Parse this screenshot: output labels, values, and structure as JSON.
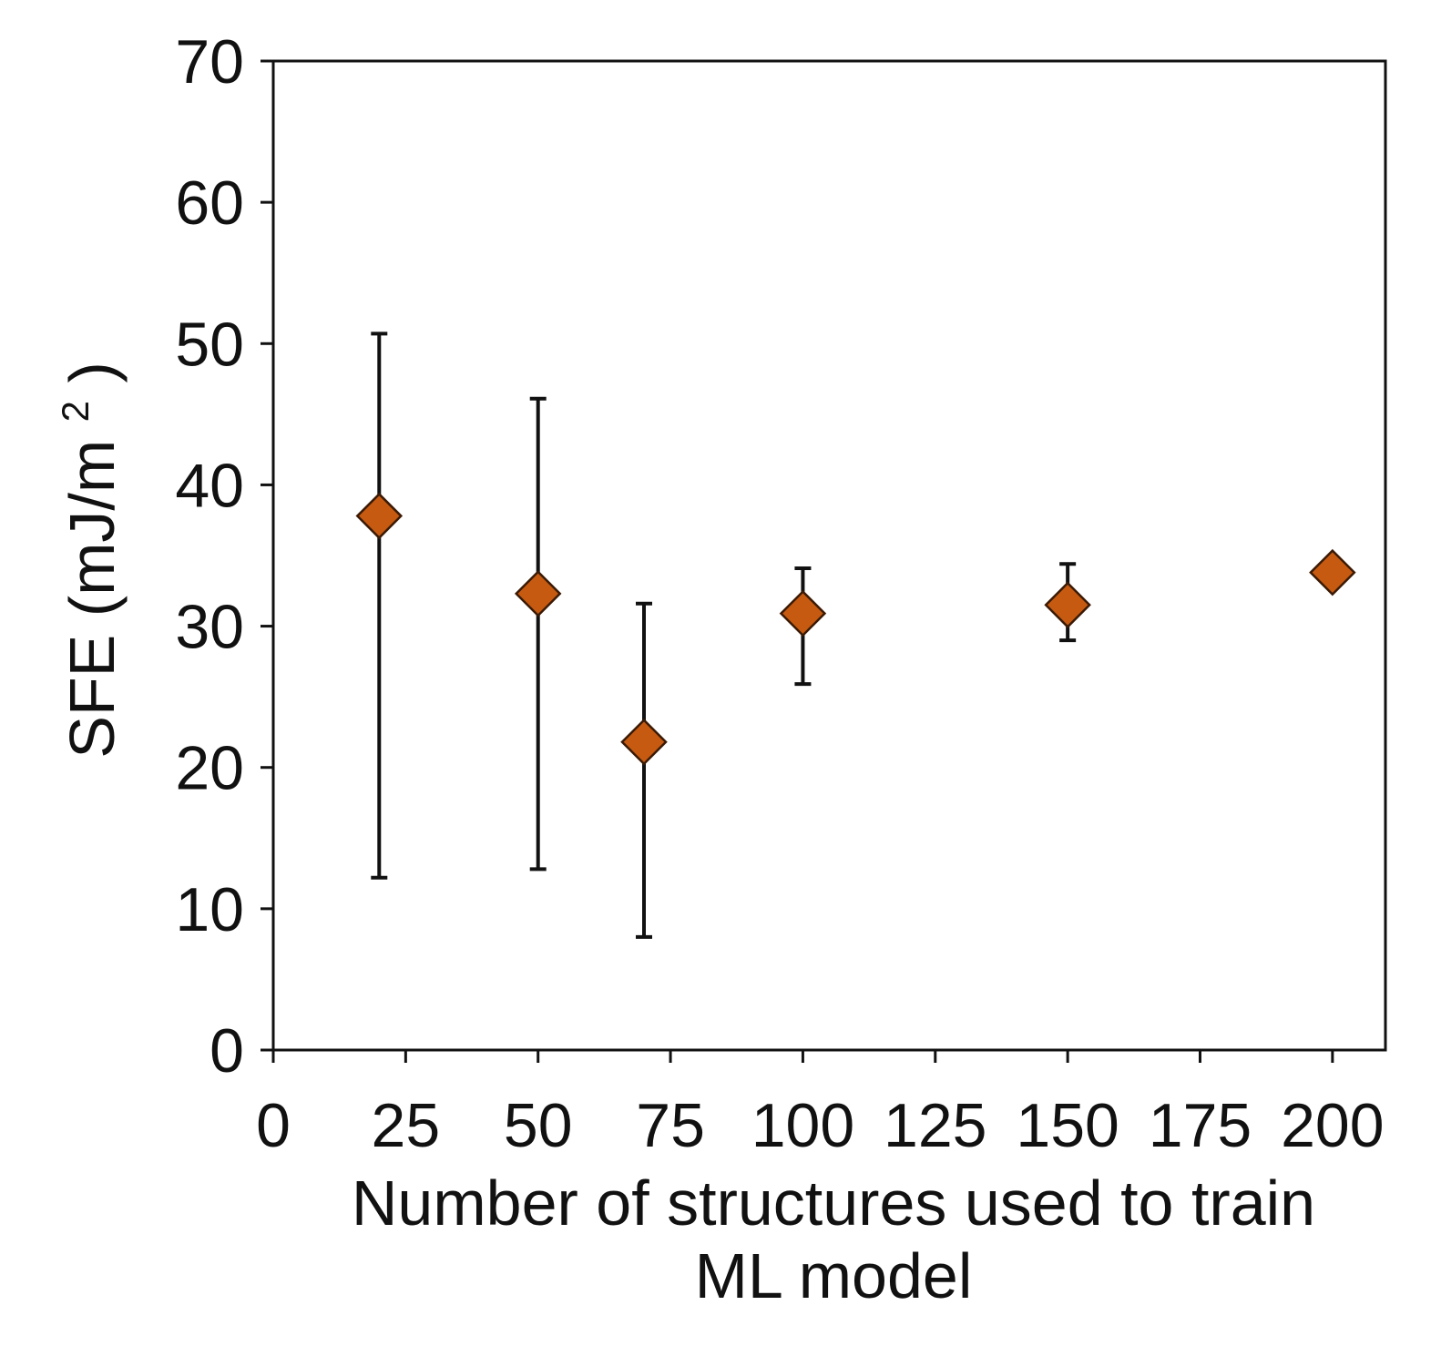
{
  "chart_data": {
    "type": "scatter",
    "title": "",
    "xlabel_lines": [
      "Number of structures used to train",
      "ML model"
    ],
    "ylabel": "SFE",
    "ylabel_unit_prefix": "(mJ/m",
    "ylabel_unit_sup": "2",
    "ylabel_unit_suffix": ")",
    "xlim": [
      0,
      210
    ],
    "ylim": [
      0,
      70
    ],
    "xticks": [
      0,
      25,
      50,
      75,
      100,
      125,
      150,
      175,
      200
    ],
    "yticks": [
      0,
      10,
      20,
      30,
      40,
      50,
      60,
      70
    ],
    "grid": false,
    "legend": "none",
    "marker": "diamond",
    "colors": {
      "marker_fill": "#C65A11",
      "marker_stroke": "#3a1a05",
      "error_bar": "#111111",
      "axis": "#111111"
    },
    "series": [
      {
        "points": [
          {
            "x": 20,
            "y": 37.8,
            "err_low": 12.2,
            "err_high": 50.7
          },
          {
            "x": 50,
            "y": 32.3,
            "err_low": 12.8,
            "err_high": 46.1
          },
          {
            "x": 70,
            "y": 21.8,
            "err_low": 8.0,
            "err_high": 31.6
          },
          {
            "x": 100,
            "y": 30.9,
            "err_low": 25.9,
            "err_high": 34.1
          },
          {
            "x": 150,
            "y": 31.5,
            "err_low": 29.0,
            "err_high": 34.4
          },
          {
            "x": 200,
            "y": 33.8,
            "err_low": 33.8,
            "err_high": 33.8
          }
        ]
      }
    ]
  }
}
